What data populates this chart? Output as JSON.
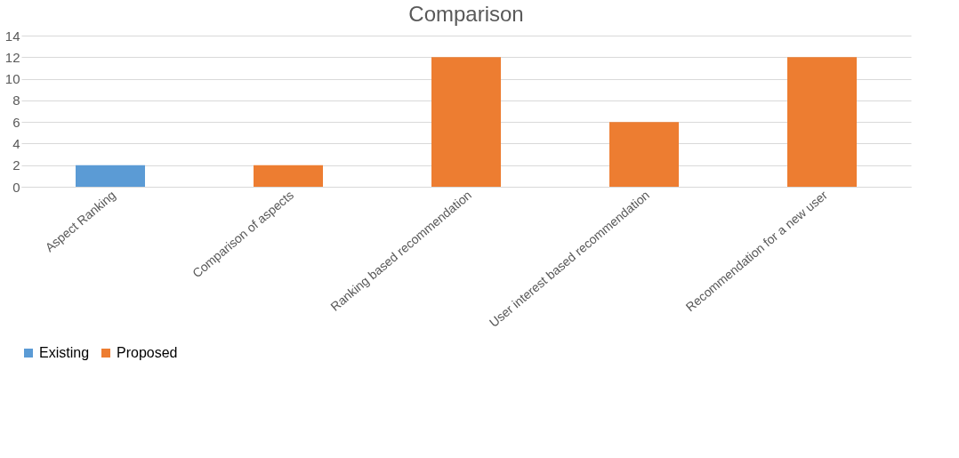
{
  "chart_data": {
    "type": "bar",
    "title": "Comparison",
    "categories": [
      "Aspect Ranking",
      "Comparison of aspects",
      "Ranking based recommendation",
      "User interest based recommendation",
      "Recommendation for a new user"
    ],
    "series": [
      {
        "name": "Existing",
        "color": "#5b9bd5",
        "values": [
          2,
          null,
          null,
          null,
          null
        ]
      },
      {
        "name": "Proposed",
        "color": "#ed7d31",
        "values": [
          null,
          2,
          12,
          6,
          12
        ]
      }
    ],
    "ylim": [
      0,
      14
    ],
    "yticks": [
      0,
      2,
      4,
      6,
      8,
      10,
      12,
      14
    ],
    "grid": "y",
    "legend": "bottom"
  }
}
